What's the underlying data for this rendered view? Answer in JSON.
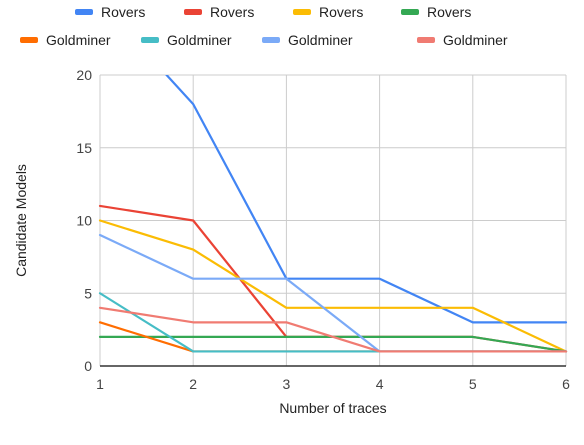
{
  "chart_data": {
    "type": "line",
    "title": "",
    "xlabel": "Number of traces",
    "ylabel": "Candidate Models",
    "x": [
      1,
      2,
      3,
      4,
      5,
      6
    ],
    "xlim": [
      1,
      6
    ],
    "ylim": [
      0,
      20
    ],
    "yticks": [
      0,
      5,
      10,
      15,
      20
    ],
    "grid": true,
    "legend_position": "top",
    "series": [
      {
        "name": "Rovers",
        "color": "#4285f4",
        "values": [
          25,
          18,
          6,
          6,
          3,
          3
        ]
      },
      {
        "name": "Rovers",
        "color": "#ea4335",
        "values": [
          11,
          10,
          2,
          2,
          2,
          1
        ]
      },
      {
        "name": "Rovers",
        "color": "#fbbc04",
        "values": [
          10,
          8,
          4,
          4,
          4,
          1
        ]
      },
      {
        "name": "Rovers",
        "color": "#34a853",
        "values": [
          2,
          2,
          2,
          2,
          2,
          1
        ]
      },
      {
        "name": "Goldminer",
        "color": "#ff6d01",
        "values": [
          3,
          1,
          1,
          1,
          1,
          1
        ]
      },
      {
        "name": "Goldminer",
        "color": "#46bdc6",
        "values": [
          5,
          1,
          1,
          1,
          1,
          1
        ]
      },
      {
        "name": "Goldminer",
        "color": "#7baaf7",
        "values": [
          9,
          6,
          6,
          1,
          1,
          1
        ]
      },
      {
        "name": "Goldminer",
        "color": "#f07b72",
        "values": [
          4,
          3,
          3,
          1,
          1,
          1
        ]
      }
    ]
  }
}
